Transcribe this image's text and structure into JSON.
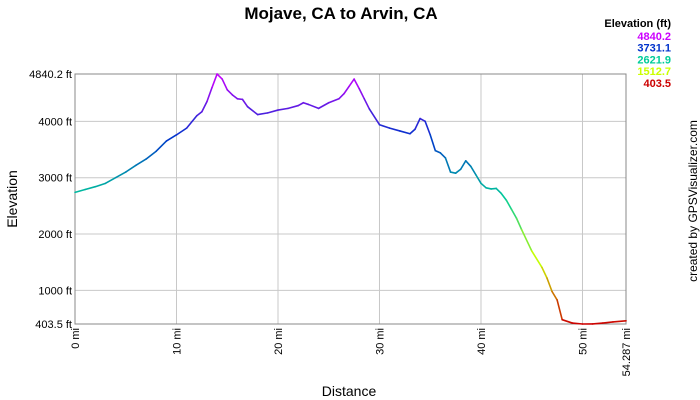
{
  "chart_data": {
    "type": "line",
    "title": "Mojave, CA to Arvin, CA",
    "xlabel": "Distance",
    "ylabel": "Elevation",
    "xlim": [
      0,
      54.287
    ],
    "ylim": [
      403.5,
      4840.2
    ],
    "grid": true,
    "x_ticks": [
      {
        "value": 0,
        "label": "0 mi"
      },
      {
        "value": 10,
        "label": "10 mi"
      },
      {
        "value": 20,
        "label": "20 mi"
      },
      {
        "value": 30,
        "label": "30 mi"
      },
      {
        "value": 40,
        "label": "40 mi"
      },
      {
        "value": 50,
        "label": "50 mi"
      },
      {
        "value": 54.287,
        "label": "54.287 mi"
      }
    ],
    "y_ticks": [
      {
        "value": 403.5,
        "label": "403.5 ft"
      },
      {
        "value": 1000,
        "label": "1000 ft"
      },
      {
        "value": 2000,
        "label": "2000 ft"
      },
      {
        "value": 3000,
        "label": "3000 ft"
      },
      {
        "value": 4000,
        "label": "4000 ft"
      },
      {
        "value": 4840.2,
        "label": "4840.2 ft"
      }
    ],
    "legend": {
      "title": "Elevation (ft)",
      "placement": "top-right",
      "entries": [
        {
          "label": "4840.2",
          "color": "#cc00ff"
        },
        {
          "label": "3731.1",
          "color": "#0033cc"
        },
        {
          "label": "2621.9",
          "color": "#00cc99"
        },
        {
          "label": "1512.7",
          "color": "#ccff00"
        },
        {
          "label": "403.5",
          "color": "#cc0000"
        }
      ]
    },
    "color_scale": {
      "stops": [
        {
          "value": 403.5,
          "color": "#cc0000"
        },
        {
          "value": 1512.7,
          "color": "#ccff00"
        },
        {
          "value": 2621.9,
          "color": "#00cc99"
        },
        {
          "value": 3731.1,
          "color": "#0033cc"
        },
        {
          "value": 4840.2,
          "color": "#cc00ff"
        }
      ]
    },
    "series": [
      {
        "x": [
          0,
          1,
          2,
          3,
          4,
          5,
          6,
          7,
          8,
          9,
          10,
          11,
          12,
          12.5,
          13,
          13.5,
          14,
          14.5,
          15,
          15.5,
          16,
          16.5,
          17,
          18,
          19,
          20,
          21,
          22,
          22.5,
          23,
          24,
          25,
          26,
          26.5,
          27,
          27.5,
          28,
          28.5,
          29,
          30,
          31,
          32,
          33,
          33.5,
          34,
          34.5,
          35,
          35.5,
          36,
          36.5,
          37,
          37.5,
          38,
          38.5,
          39,
          39.5,
          40,
          40.5,
          41,
          41.5,
          42,
          42.5,
          43,
          43.5,
          44,
          45,
          46,
          46.5,
          47,
          47.5,
          48,
          49,
          50,
          51,
          52,
          53,
          54.287
        ],
        "y": [
          2740,
          2790,
          2840,
          2900,
          3000,
          3100,
          3220,
          3330,
          3470,
          3650,
          3760,
          3880,
          4100,
          4170,
          4350,
          4600,
          4840,
          4750,
          4560,
          4470,
          4400,
          4390,
          4260,
          4120,
          4150,
          4200,
          4230,
          4280,
          4330,
          4300,
          4230,
          4330,
          4400,
          4490,
          4620,
          4750,
          4580,
          4400,
          4220,
          3940,
          3880,
          3830,
          3780,
          3860,
          4050,
          4000,
          3760,
          3480,
          3440,
          3350,
          3100,
          3080,
          3150,
          3300,
          3200,
          3050,
          2900,
          2820,
          2800,
          2810,
          2720,
          2600,
          2440,
          2280,
          2080,
          1700,
          1410,
          1220,
          980,
          830,
          480,
          420,
          403.5,
          405,
          420,
          440,
          460
        ]
      }
    ],
    "credit": "created by GPSVisualizer.com"
  }
}
